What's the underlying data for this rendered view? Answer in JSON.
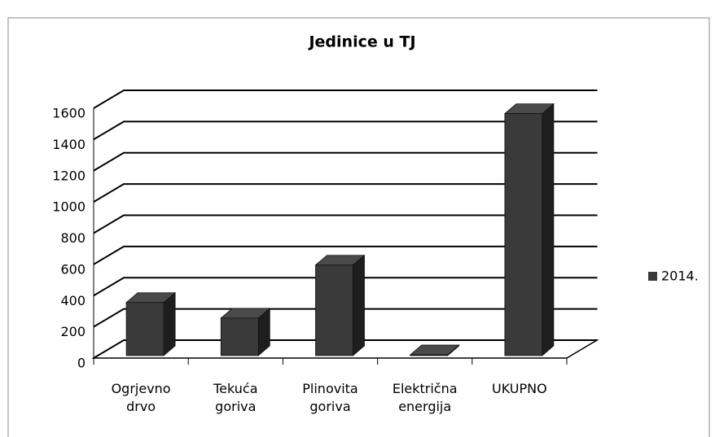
{
  "chart_data": {
    "type": "bar3d",
    "title": "Jedinice u TJ",
    "categories": [
      "Ogrjevno drvo",
      "Tekuća goriva",
      "Plinovita goriva",
      "Električna energija",
      "UKUPNO"
    ],
    "series": [
      {
        "name": "2014.",
        "color": "#3a3a3a",
        "values": [
          340,
          240,
          580,
          5,
          1550
        ]
      }
    ],
    "ylim": [
      0,
      1600
    ],
    "yticks": [
      0,
      200,
      400,
      600,
      800,
      1000,
      1200,
      1400,
      1600
    ],
    "grid": true,
    "legend": "right"
  }
}
